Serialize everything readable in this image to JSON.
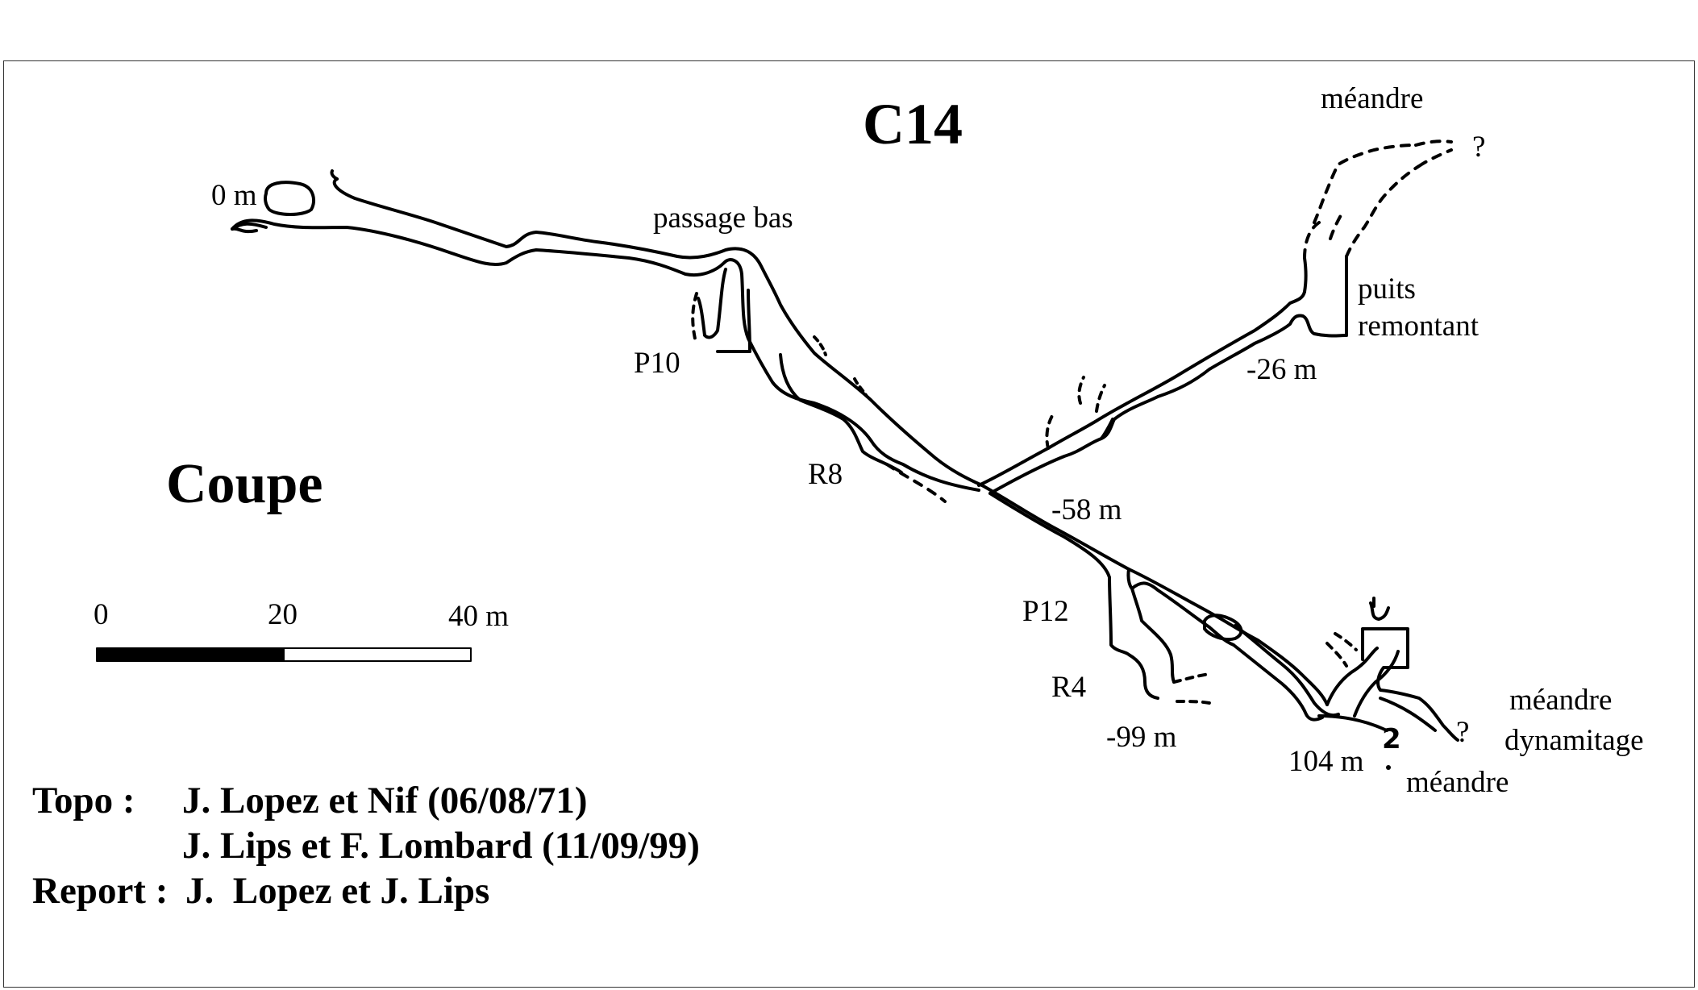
{
  "title": "C14",
  "view_label": "Coupe",
  "labels": {
    "entrance": "0 m",
    "passage_bas": "passage bas",
    "meandre_top": "méandre",
    "q_top": "?",
    "puits": "puits",
    "remontant": "remontant",
    "d26": "-26 m",
    "p10": "P10",
    "r8": "R8",
    "d58": "-58 m",
    "p12": "P12",
    "r4": "R4",
    "d99": "-99 m",
    "d104": "104 m",
    "meandre_bottom": "méandre",
    "meandre_right": "méandre",
    "dynamitage": "dynamitage",
    "q_bottom": "?",
    "digit_2": "2"
  },
  "scale": {
    "tick_0": "0",
    "tick_20": "20",
    "tick_40": "40 m"
  },
  "credits": {
    "topo_label": "Topo :",
    "topo_line1": "J. Lopez et Nif (06/08/71)",
    "topo_line2": "J. Lips et F. Lombard (11/09/99)",
    "report_label": "Report :",
    "report_text": "J.  Lopez et J. Lips"
  }
}
